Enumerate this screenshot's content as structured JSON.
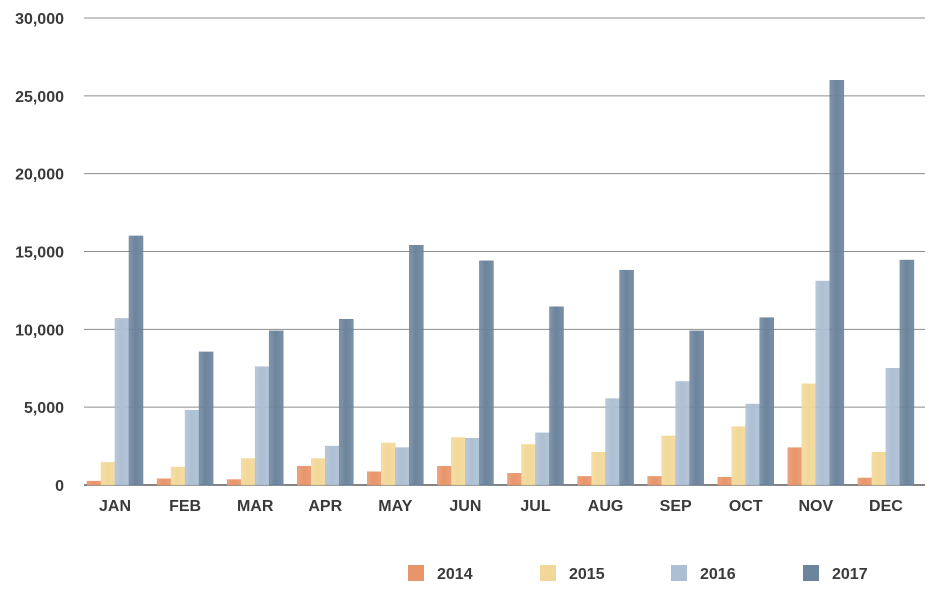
{
  "chart_data": {
    "type": "bar",
    "title": "",
    "xlabel": "",
    "ylabel": "",
    "ylim": [
      0,
      30000
    ],
    "yticks": [
      "0",
      "5,000",
      "10,000",
      "15,000",
      "20,000",
      "25,000",
      "30,000"
    ],
    "ytick_values": [
      0,
      5000,
      10000,
      15000,
      20000,
      25000,
      30000
    ],
    "grid": true,
    "legend_position": "bottom-right",
    "categories": [
      "JAN",
      "FEB",
      "MAR",
      "APR",
      "MAY",
      "JUN",
      "JUL",
      "AUG",
      "SEP",
      "OCT",
      "NOV",
      "DEC"
    ],
    "series": [
      {
        "name": "2014",
        "color": "#E8956A",
        "values": [
          250,
          400,
          350,
          1200,
          850,
          1200,
          750,
          550,
          550,
          500,
          2400,
          450
        ]
      },
      {
        "name": "2015",
        "color": "#F2D898",
        "values": [
          1450,
          1150,
          1700,
          1700,
          2700,
          3050,
          2600,
          2100,
          3150,
          3750,
          6500,
          2100
        ]
      },
      {
        "name": "2016",
        "color": "#ADBFD3",
        "values": [
          10700,
          4800,
          7600,
          2500,
          2400,
          3000,
          3350,
          5550,
          6650,
          5200,
          13100,
          7500
        ]
      },
      {
        "name": "2017",
        "color": "#6C849C",
        "values": [
          16000,
          8550,
          9900,
          10650,
          15400,
          14400,
          11450,
          13800,
          9900,
          10750,
          26000,
          14450
        ]
      }
    ]
  }
}
